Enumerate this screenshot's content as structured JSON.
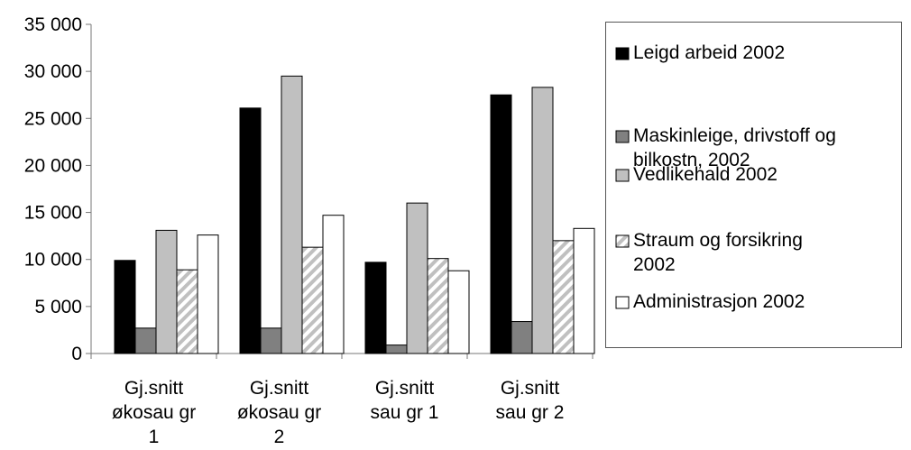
{
  "chart_data": {
    "type": "bar",
    "categories": [
      "Gj.snitt\nøkosau gr\n1",
      "Gj.snitt\nøkosau gr\n2",
      "Gj.snitt\nsau gr 1",
      "Gj.snitt\nsau gr 2"
    ],
    "series": [
      {
        "name": "Leigd arbeid 2002",
        "values": [
          9900,
          26100,
          9700,
          27500
        ],
        "color": "#000000",
        "pattern": "solid"
      },
      {
        "name": " Maskinleige, drivstoff og bilkostn, 2002",
        "values": [
          2700,
          2700,
          900,
          3400
        ],
        "color": "#808080",
        "pattern": "solid"
      },
      {
        "name": "Vedlikehald 2002",
        "values": [
          13100,
          29500,
          16000,
          28300
        ],
        "color": "#c0c0c0",
        "pattern": "solid"
      },
      {
        "name": "Straum og forsikring 2002",
        "values": [
          8900,
          11300,
          10100,
          12000
        ],
        "color": "#c0c0c0",
        "pattern": "diagonal"
      },
      {
        "name": "Administrasjon 2002",
        "values": [
          12600,
          14700,
          8800,
          13300
        ],
        "color": "#ffffff",
        "pattern": "solid"
      }
    ],
    "yticks": [
      "0",
      "5 000",
      "10 000",
      "15 000",
      "20 000",
      "25 000",
      "30 000",
      "35 000"
    ],
    "ylim": [
      0,
      35000
    ],
    "grid": false,
    "legend_position": "right"
  }
}
